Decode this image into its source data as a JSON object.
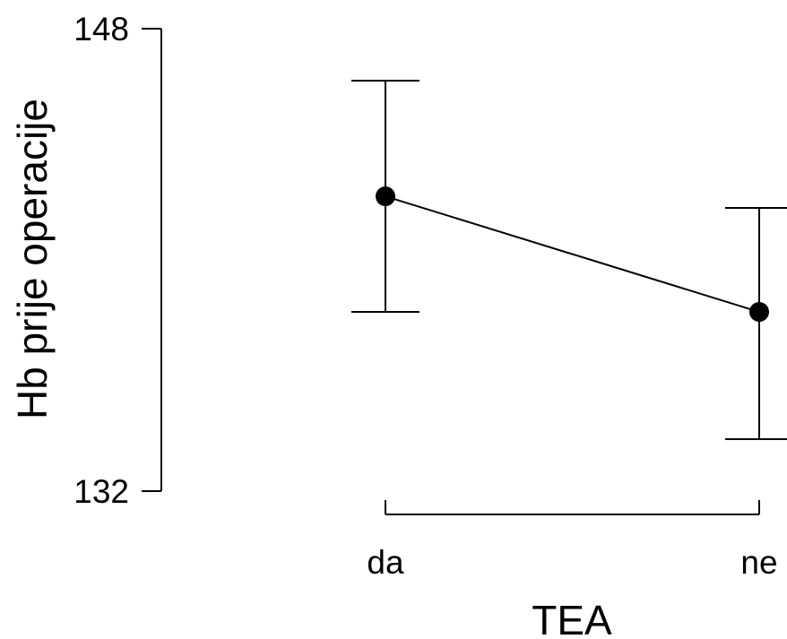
{
  "chart_data": {
    "type": "line",
    "categories": [
      "da",
      "ne"
    ],
    "series": [
      {
        "values": [
          142.2,
          138.2
        ],
        "lower": [
          138.2,
          133.8
        ],
        "upper": [
          146.2,
          141.8
        ]
      }
    ],
    "xlabel": "TEA",
    "ylabel": "Hb prije operacije",
    "ylim": [
      132,
      148
    ],
    "yticks": [
      132,
      148
    ],
    "grid": false,
    "legend": "none"
  }
}
